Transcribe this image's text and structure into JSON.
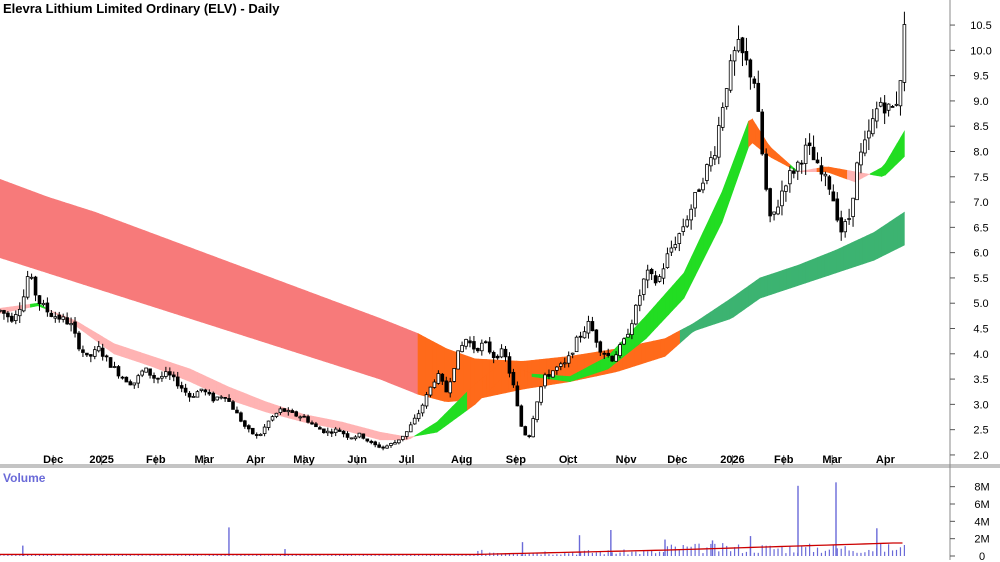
{
  "chart_data": {
    "type": "candlestick",
    "title": "Elevra Lithium Limited Ordinary (ELV) - Daily",
    "volume_label": "Volume",
    "price_axis": {
      "min": 1.9,
      "max": 10.6,
      "ticks": [
        "2.0",
        "2.5",
        "3.0",
        "3.5",
        "4.0",
        "4.5",
        "5.0",
        "5.5",
        "6.0",
        "6.5",
        "7.0",
        "7.5",
        "8.0",
        "8.5",
        "9.0",
        "9.5",
        "10.0",
        "10.5"
      ]
    },
    "volume_axis": {
      "max": 9,
      "ticks": [
        "0",
        "2M",
        "4M",
        "6M",
        "8M"
      ]
    },
    "months": [
      {
        "label": "Dec",
        "pos": 0.056
      },
      {
        "label": "2025",
        "pos": 0.107
      },
      {
        "label": "Feb",
        "pos": 0.164
      },
      {
        "label": "Mar",
        "pos": 0.215
      },
      {
        "label": "Apr",
        "pos": 0.269
      },
      {
        "label": "May",
        "pos": 0.32
      },
      {
        "label": "Jun",
        "pos": 0.376
      },
      {
        "label": "Jul",
        "pos": 0.428
      },
      {
        "label": "Aug",
        "pos": 0.486
      },
      {
        "label": "Sep",
        "pos": 0.543
      },
      {
        "label": "Oct",
        "pos": 0.598
      },
      {
        "label": "Nov",
        "pos": 0.659
      },
      {
        "label": "Dec",
        "pos": 0.713
      },
      {
        "label": "2026",
        "pos": 0.771
      },
      {
        "label": "Feb",
        "pos": 0.825
      },
      {
        "label": "Mar",
        "pos": 0.876
      },
      {
        "label": "Apr",
        "pos": 0.932
      }
    ],
    "price_path": [
      [
        0.0,
        4.85
      ],
      [
        0.012,
        4.7
      ],
      [
        0.024,
        5.05
      ],
      [
        0.03,
        5.6
      ],
      [
        0.04,
        5.05
      ],
      [
        0.052,
        4.8
      ],
      [
        0.064,
        4.7
      ],
      [
        0.074,
        4.6
      ],
      [
        0.082,
        4.2
      ],
      [
        0.092,
        3.9
      ],
      [
        0.104,
        4.1
      ],
      [
        0.116,
        3.8
      ],
      [
        0.128,
        3.55
      ],
      [
        0.14,
        3.4
      ],
      [
        0.152,
        3.7
      ],
      [
        0.164,
        3.5
      ],
      [
        0.176,
        3.6
      ],
      [
        0.188,
        3.4
      ],
      [
        0.2,
        3.15
      ],
      [
        0.212,
        3.3
      ],
      [
        0.224,
        3.1
      ],
      [
        0.236,
        3.2
      ],
      [
        0.248,
        2.85
      ],
      [
        0.26,
        2.5
      ],
      [
        0.272,
        2.35
      ],
      [
        0.284,
        2.7
      ],
      [
        0.296,
        2.9
      ],
      [
        0.308,
        2.8
      ],
      [
        0.32,
        2.75
      ],
      [
        0.332,
        2.55
      ],
      [
        0.344,
        2.45
      ],
      [
        0.356,
        2.5
      ],
      [
        0.368,
        2.35
      ],
      [
        0.38,
        2.4
      ],
      [
        0.392,
        2.2
      ],
      [
        0.404,
        2.15
      ],
      [
        0.416,
        2.25
      ],
      [
        0.428,
        2.45
      ],
      [
        0.44,
        2.8
      ],
      [
        0.45,
        3.2
      ],
      [
        0.46,
        3.6
      ],
      [
        0.47,
        3.25
      ],
      [
        0.48,
        3.9
      ],
      [
        0.49,
        4.3
      ],
      [
        0.5,
        4.1
      ],
      [
        0.51,
        4.2
      ],
      [
        0.52,
        3.95
      ],
      [
        0.53,
        4.05
      ],
      [
        0.54,
        3.4
      ],
      [
        0.548,
        2.6
      ],
      [
        0.556,
        2.3
      ],
      [
        0.564,
        3.0
      ],
      [
        0.572,
        3.5
      ],
      [
        0.584,
        3.7
      ],
      [
        0.596,
        3.8
      ],
      [
        0.608,
        4.3
      ],
      [
        0.62,
        4.6
      ],
      [
        0.632,
        4.1
      ],
      [
        0.644,
        3.9
      ],
      [
        0.656,
        4.2
      ],
      [
        0.668,
        4.8
      ],
      [
        0.68,
        5.6
      ],
      [
        0.692,
        5.4
      ],
      [
        0.704,
        6.0
      ],
      [
        0.716,
        6.4
      ],
      [
        0.728,
        6.9
      ],
      [
        0.74,
        7.5
      ],
      [
        0.752,
        8.0
      ],
      [
        0.764,
        9.3
      ],
      [
        0.776,
        10.1
      ],
      [
        0.784,
        9.8
      ],
      [
        0.794,
        9.4
      ],
      [
        0.802,
        8.0
      ],
      [
        0.81,
        6.6
      ],
      [
        0.818,
        6.9
      ],
      [
        0.826,
        7.4
      ],
      [
        0.838,
        7.7
      ],
      [
        0.85,
        8.1
      ],
      [
        0.862,
        7.6
      ],
      [
        0.874,
        7.3
      ],
      [
        0.886,
        6.4
      ],
      [
        0.894,
        6.7
      ],
      [
        0.902,
        7.7
      ],
      [
        0.914,
        8.3
      ],
      [
        0.926,
        9.0
      ],
      [
        0.938,
        8.8
      ],
      [
        0.946,
        9.1
      ],
      [
        0.952,
        10.4
      ]
    ],
    "ema_short_fast": [
      [
        0.0,
        4.9
      ],
      [
        0.04,
        5.0
      ],
      [
        0.08,
        4.55
      ],
      [
        0.12,
        4.0
      ],
      [
        0.16,
        3.75
      ],
      [
        0.2,
        3.45
      ],
      [
        0.24,
        3.1
      ],
      [
        0.28,
        2.85
      ],
      [
        0.32,
        2.65
      ],
      [
        0.36,
        2.5
      ],
      [
        0.4,
        2.3
      ],
      [
        0.43,
        2.3
      ],
      [
        0.46,
        2.65
      ],
      [
        0.5,
        3.4
      ],
      [
        0.53,
        3.85
      ],
      [
        0.56,
        3.6
      ],
      [
        0.6,
        3.55
      ],
      [
        0.64,
        3.95
      ],
      [
        0.68,
        4.75
      ],
      [
        0.72,
        5.6
      ],
      [
        0.76,
        7.2
      ],
      [
        0.79,
        8.7
      ],
      [
        0.81,
        8.1
      ],
      [
        0.84,
        7.6
      ],
      [
        0.87,
        7.6
      ],
      [
        0.9,
        7.4
      ],
      [
        0.93,
        7.7
      ],
      [
        0.952,
        8.4
      ]
    ],
    "ema_short_slow": [
      [
        0.0,
        4.8
      ],
      [
        0.04,
        4.95
      ],
      [
        0.08,
        4.65
      ],
      [
        0.12,
        4.2
      ],
      [
        0.16,
        3.95
      ],
      [
        0.2,
        3.7
      ],
      [
        0.24,
        3.35
      ],
      [
        0.28,
        3.05
      ],
      [
        0.32,
        2.8
      ],
      [
        0.36,
        2.65
      ],
      [
        0.4,
        2.45
      ],
      [
        0.43,
        2.35
      ],
      [
        0.46,
        2.45
      ],
      [
        0.5,
        3.0
      ],
      [
        0.53,
        3.55
      ],
      [
        0.56,
        3.55
      ],
      [
        0.6,
        3.45
      ],
      [
        0.64,
        3.7
      ],
      [
        0.68,
        4.3
      ],
      [
        0.72,
        5.1
      ],
      [
        0.76,
        6.6
      ],
      [
        0.79,
        8.2
      ],
      [
        0.81,
        7.9
      ],
      [
        0.84,
        7.6
      ],
      [
        0.87,
        7.7
      ],
      [
        0.9,
        7.6
      ],
      [
        0.93,
        7.5
      ],
      [
        0.952,
        7.9
      ]
    ],
    "ema_long_fast": [
      [
        0.0,
        7.45
      ],
      [
        0.05,
        7.1
      ],
      [
        0.1,
        6.8
      ],
      [
        0.15,
        6.45
      ],
      [
        0.2,
        6.1
      ],
      [
        0.25,
        5.75
      ],
      [
        0.3,
        5.4
      ],
      [
        0.35,
        5.05
      ],
      [
        0.4,
        4.7
      ],
      [
        0.44,
        4.4
      ],
      [
        0.47,
        4.1
      ],
      [
        0.5,
        3.9
      ],
      [
        0.55,
        3.85
      ],
      [
        0.6,
        3.95
      ],
      [
        0.65,
        4.1
      ],
      [
        0.7,
        4.3
      ],
      [
        0.73,
        4.6
      ],
      [
        0.77,
        5.1
      ],
      [
        0.8,
        5.5
      ],
      [
        0.84,
        5.75
      ],
      [
        0.88,
        6.05
      ],
      [
        0.92,
        6.4
      ],
      [
        0.952,
        6.8
      ]
    ],
    "ema_long_slow": [
      [
        0.0,
        5.9
      ],
      [
        0.05,
        5.6
      ],
      [
        0.1,
        5.3
      ],
      [
        0.15,
        5.0
      ],
      [
        0.2,
        4.7
      ],
      [
        0.25,
        4.4
      ],
      [
        0.3,
        4.1
      ],
      [
        0.35,
        3.8
      ],
      [
        0.4,
        3.5
      ],
      [
        0.44,
        3.2
      ],
      [
        0.47,
        3.05
      ],
      [
        0.5,
        3.1
      ],
      [
        0.55,
        3.3
      ],
      [
        0.6,
        3.45
      ],
      [
        0.65,
        3.65
      ],
      [
        0.7,
        3.95
      ],
      [
        0.73,
        4.45
      ],
      [
        0.77,
        4.7
      ],
      [
        0.8,
        5.1
      ],
      [
        0.84,
        5.35
      ],
      [
        0.88,
        5.6
      ],
      [
        0.92,
        5.85
      ],
      [
        0.952,
        6.15
      ]
    ],
    "volume_spikes": [
      {
        "x": 0.024,
        "v": 1.2
      },
      {
        "x": 0.241,
        "v": 3.3
      },
      {
        "x": 0.3,
        "v": 0.8
      },
      {
        "x": 0.55,
        "v": 1.6
      },
      {
        "x": 0.61,
        "v": 2.4
      },
      {
        "x": 0.643,
        "v": 3.0
      },
      {
        "x": 0.7,
        "v": 1.9
      },
      {
        "x": 0.75,
        "v": 1.8
      },
      {
        "x": 0.79,
        "v": 2.3
      },
      {
        "x": 0.84,
        "v": 8.1
      },
      {
        "x": 0.88,
        "v": 8.5
      },
      {
        "x": 0.923,
        "v": 3.2
      }
    ],
    "colors": {
      "long_bear": "#f77a7a",
      "long_bull": "#3cb371",
      "long_mixed": "#ff6a1a",
      "short_bull": "#22dd22",
      "short_bear": "#ffb3b3",
      "short_mixed": "#ff6a1a",
      "volume_bar": "#6a6ad8",
      "volume_ma": "#cc0000",
      "grid": "#808080"
    }
  }
}
